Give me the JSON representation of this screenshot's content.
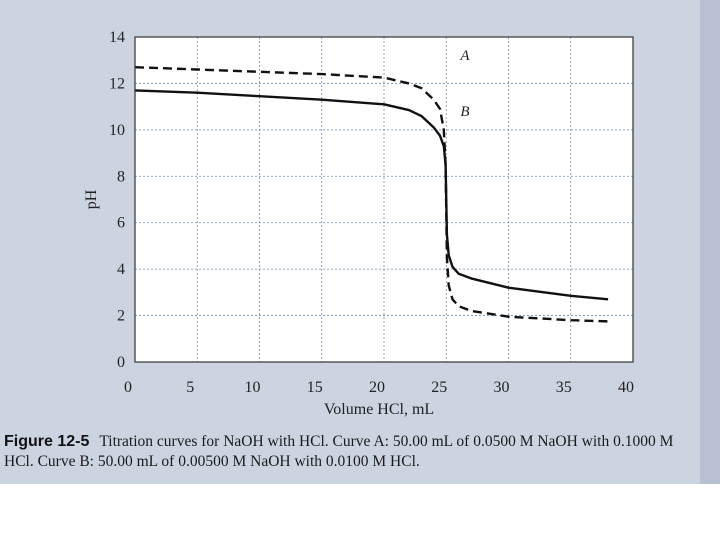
{
  "chart_data": {
    "type": "line",
    "title": "",
    "xlabel": "Volume HCl, mL",
    "ylabel": "pH",
    "xlim": [
      0,
      40
    ],
    "ylim": [
      0,
      14
    ],
    "x_ticks": [
      0,
      5,
      10,
      15,
      20,
      25,
      30,
      35,
      40
    ],
    "y_ticks": [
      0,
      2,
      4,
      6,
      8,
      10,
      12,
      14
    ],
    "grid": true,
    "series": [
      {
        "name": "A",
        "style": "dashed",
        "x": [
          0,
          5,
          10,
          15,
          20,
          22,
          23,
          24,
          24.5,
          24.8,
          24.95,
          25.05,
          25.2,
          25.5,
          26,
          27,
          30,
          35,
          38
        ],
        "y": [
          12.7,
          12.6,
          12.5,
          12.4,
          12.25,
          12.0,
          11.8,
          11.3,
          10.9,
          10.0,
          8.5,
          4.5,
          3.3,
          2.7,
          2.4,
          2.2,
          1.95,
          1.8,
          1.75
        ]
      },
      {
        "name": "B",
        "style": "solid",
        "x": [
          0,
          5,
          10,
          15,
          20,
          22,
          23,
          24,
          24.5,
          24.8,
          24.95,
          25.05,
          25.2,
          25.5,
          26,
          27,
          30,
          35,
          38
        ],
        "y": [
          11.7,
          11.6,
          11.45,
          11.3,
          11.1,
          10.85,
          10.6,
          10.1,
          9.75,
          9.3,
          8.5,
          5.5,
          4.6,
          4.1,
          3.8,
          3.6,
          3.2,
          2.85,
          2.7
        ]
      }
    ],
    "annotations": [
      {
        "text": "A",
        "x": 26.5,
        "y": 13.0
      },
      {
        "text": "B",
        "x": 26.5,
        "y": 10.6
      }
    ]
  },
  "caption": {
    "label": "Figure 12-5",
    "text": "Titration curves for NaOH with HCl. Curve A: 50.00 mL of 0.0500 M NaOH with 0.1000 M HCl. Curve B: 50.00 mL of 0.00500 M NaOH with 0.0100 M HCl."
  }
}
